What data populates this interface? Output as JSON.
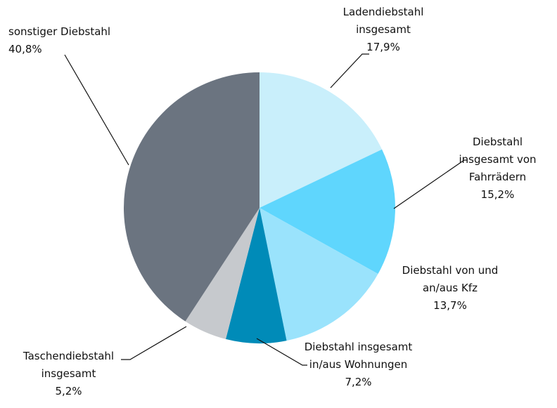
{
  "chart_data": {
    "type": "pie",
    "categories": [
      "Ladendiebstahl insgesamt",
      "Diebstahl insgesamt von Fahrrädern",
      "Diebstahl von und an/aus Kfz",
      "Diebstahl insgesamt in/aus Wohnungen",
      "Taschendiebstahl insgesamt",
      "sonstiger Diebstahl"
    ],
    "values": [
      17.9,
      15.2,
      13.7,
      7.2,
      5.2,
      40.8
    ],
    "value_labels": [
      "17,9%",
      "15,2%",
      "13,7%",
      "7,2%",
      "5,2%",
      "40,8%"
    ],
    "colors": [
      "#c9effb",
      "#5fd6fd",
      "#9ae3fc",
      "#008bb8",
      "#c6c9cd",
      "#6b7480"
    ]
  }
}
